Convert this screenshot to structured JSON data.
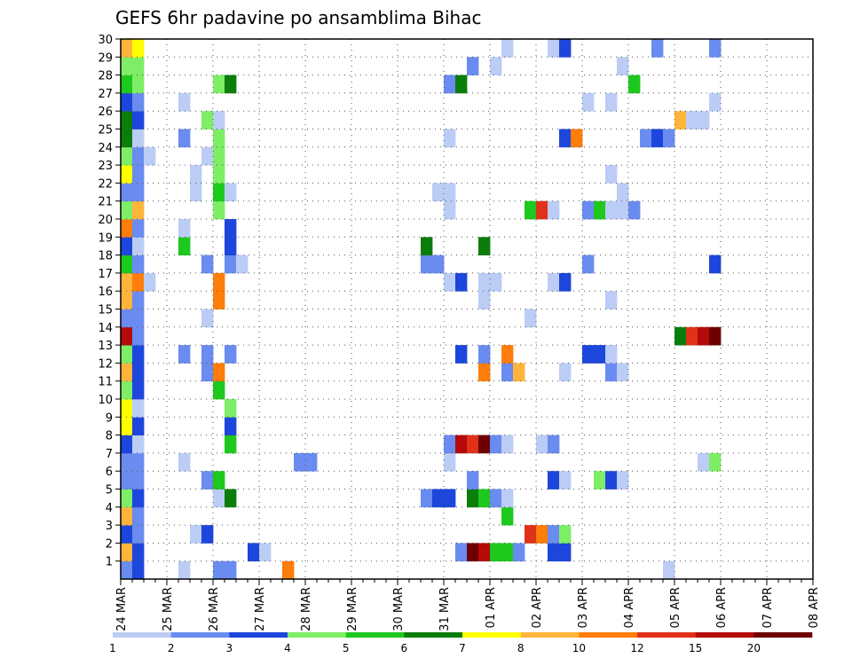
{
  "chart_data": {
    "type": "heatmap",
    "title": "GEFS 6hr padavine po ansamblima Bihac",
    "xlabel": "",
    "ylabel": "",
    "x_ticks": [
      "24 MAR",
      "25 MAR",
      "26 MAR",
      "27 MAR",
      "28 MAR",
      "29 MAR",
      "30 MAR",
      "31 MAR",
      "01 APR",
      "02 APR",
      "03 APR",
      "04 APR",
      "05 APR",
      "06 APR",
      "07 APR",
      "08 APR"
    ],
    "y_ticks": [
      "1",
      "2",
      "3",
      "4",
      "5",
      "6",
      "7",
      "8",
      "9",
      "10",
      "11",
      "12",
      "13",
      "14",
      "15",
      "16",
      "17",
      "18",
      "19",
      "20",
      "21",
      "22",
      "23",
      "24",
      "25",
      "26",
      "27",
      "28",
      "29",
      "30"
    ],
    "x_range": [
      "24 MAR 00Z",
      "08 APR 00Z"
    ],
    "y_range": [
      0,
      30
    ],
    "time_step_hours": 6,
    "grid": "dotted",
    "legend": "bottom",
    "colorbar": {
      "labels": [
        "1",
        "2",
        "3",
        "4",
        "5",
        "6",
        "7",
        "8",
        "10",
        "12",
        "15",
        "20"
      ],
      "colors": [
        "#bccdf5",
        "#6a8cf0",
        "#1c46dc",
        "#7dee65",
        "#1ec91e",
        "#0b7d0b",
        "#ffff00",
        "#ffb43c",
        "#ff7d0a",
        "#e13219",
        "#b40a0a",
        "#6e0000"
      ]
    },
    "cells": [
      [
        0,
        1,
        2
      ],
      [
        0,
        2,
        8
      ],
      [
        0,
        3,
        3
      ],
      [
        0,
        4,
        8
      ],
      [
        0,
        5,
        4
      ],
      [
        0,
        6,
        2
      ],
      [
        0,
        7,
        2
      ],
      [
        0,
        8,
        3
      ],
      [
        0,
        9,
        7
      ],
      [
        0,
        10,
        7
      ],
      [
        0,
        11,
        4
      ],
      [
        0,
        12,
        8
      ],
      [
        0,
        13,
        4
      ],
      [
        0,
        14,
        11
      ],
      [
        0,
        15,
        2
      ],
      [
        0,
        16,
        8
      ],
      [
        0,
        17,
        8
      ],
      [
        0,
        18,
        5
      ],
      [
        0,
        19,
        3
      ],
      [
        0,
        20,
        9
      ],
      [
        0,
        21,
        4
      ],
      [
        0,
        22,
        2
      ],
      [
        0,
        23,
        7
      ],
      [
        0,
        24,
        4
      ],
      [
        0,
        25,
        6
      ],
      [
        0,
        26,
        6
      ],
      [
        0,
        27,
        3
      ],
      [
        0,
        28,
        5
      ],
      [
        0,
        29,
        4
      ],
      [
        0,
        30,
        8
      ],
      [
        1,
        1,
        3
      ],
      [
        1,
        2,
        3
      ],
      [
        1,
        3,
        2
      ],
      [
        1,
        4,
        2
      ],
      [
        1,
        5,
        3
      ],
      [
        1,
        6,
        2
      ],
      [
        1,
        7,
        2
      ],
      [
        1,
        8,
        1
      ],
      [
        1,
        9,
        3
      ],
      [
        1,
        10,
        1
      ],
      [
        1,
        11,
        3
      ],
      [
        1,
        12,
        3
      ],
      [
        1,
        13,
        3
      ],
      [
        1,
        14,
        2
      ],
      [
        1,
        15,
        2
      ],
      [
        1,
        16,
        2
      ],
      [
        1,
        17,
        9
      ],
      [
        1,
        18,
        2
      ],
      [
        1,
        19,
        1
      ],
      [
        1,
        20,
        2
      ],
      [
        1,
        21,
        8
      ],
      [
        1,
        22,
        2
      ],
      [
        1,
        23,
        2
      ],
      [
        1,
        24,
        2
      ],
      [
        1,
        25,
        1
      ],
      [
        1,
        26,
        3
      ],
      [
        1,
        27,
        2
      ],
      [
        1,
        28,
        4
      ],
      [
        1,
        29,
        4
      ],
      [
        1,
        30,
        7
      ],
      [
        2,
        17,
        1
      ],
      [
        2,
        24,
        1
      ],
      [
        5,
        1,
        1
      ],
      [
        5,
        7,
        1
      ],
      [
        5,
        13,
        2
      ],
      [
        5,
        19,
        5
      ],
      [
        5,
        20,
        1
      ],
      [
        5,
        25,
        2
      ],
      [
        5,
        27,
        1
      ],
      [
        6,
        3,
        1
      ],
      [
        6,
        22,
        1
      ],
      [
        6,
        23,
        1
      ],
      [
        7,
        3,
        3
      ],
      [
        7,
        6,
        2
      ],
      [
        7,
        12,
        2
      ],
      [
        7,
        13,
        2
      ],
      [
        7,
        15,
        1
      ],
      [
        7,
        18,
        2
      ],
      [
        7,
        24,
        1
      ],
      [
        7,
        26,
        4
      ],
      [
        8,
        1,
        2
      ],
      [
        8,
        5,
        1
      ],
      [
        8,
        6,
        5
      ],
      [
        8,
        11,
        5
      ],
      [
        8,
        12,
        9
      ],
      [
        8,
        16,
        9
      ],
      [
        8,
        17,
        9
      ],
      [
        8,
        21,
        4
      ],
      [
        8,
        22,
        5
      ],
      [
        8,
        23,
        4
      ],
      [
        8,
        24,
        4
      ],
      [
        8,
        25,
        4
      ],
      [
        8,
        26,
        1
      ],
      [
        8,
        28,
        4
      ],
      [
        9,
        1,
        2
      ],
      [
        9,
        5,
        6
      ],
      [
        9,
        8,
        5
      ],
      [
        9,
        9,
        3
      ],
      [
        9,
        10,
        4
      ],
      [
        9,
        13,
        2
      ],
      [
        9,
        18,
        2
      ],
      [
        9,
        19,
        3
      ],
      [
        9,
        20,
        3
      ],
      [
        9,
        22,
        1
      ],
      [
        9,
        28,
        6
      ],
      [
        10,
        18,
        1
      ],
      [
        11,
        2,
        3
      ],
      [
        12,
        2,
        1
      ],
      [
        14,
        1,
        9
      ],
      [
        15,
        7,
        2
      ],
      [
        16,
        7,
        2
      ],
      [
        26,
        5,
        2
      ],
      [
        26,
        18,
        2
      ],
      [
        26,
        19,
        6
      ],
      [
        27,
        5,
        3
      ],
      [
        27,
        18,
        2
      ],
      [
        27,
        22,
        1
      ],
      [
        28,
        5,
        3
      ],
      [
        28,
        7,
        1
      ],
      [
        28,
        8,
        2
      ],
      [
        28,
        17,
        1
      ],
      [
        28,
        21,
        1
      ],
      [
        28,
        22,
        1
      ],
      [
        28,
        25,
        1
      ],
      [
        28,
        28,
        2
      ],
      [
        29,
        2,
        2
      ],
      [
        29,
        8,
        11
      ],
      [
        29,
        13,
        3
      ],
      [
        29,
        17,
        3
      ],
      [
        29,
        28,
        6
      ],
      [
        30,
        2,
        12
      ],
      [
        30,
        5,
        6
      ],
      [
        30,
        6,
        2
      ],
      [
        30,
        8,
        10
      ],
      [
        30,
        29,
        2
      ],
      [
        31,
        2,
        11
      ],
      [
        31,
        5,
        5
      ],
      [
        31,
        8,
        12
      ],
      [
        31,
        12,
        9
      ],
      [
        31,
        13,
        2
      ],
      [
        31,
        16,
        1
      ],
      [
        31,
        17,
        1
      ],
      [
        31,
        19,
        6
      ],
      [
        32,
        2,
        5
      ],
      [
        32,
        5,
        2
      ],
      [
        32,
        8,
        2
      ],
      [
        32,
        17,
        1
      ],
      [
        32,
        29,
        1
      ],
      [
        33,
        2,
        5
      ],
      [
        33,
        4,
        5
      ],
      [
        33,
        5,
        1
      ],
      [
        33,
        8,
        1
      ],
      [
        33,
        12,
        2
      ],
      [
        33,
        13,
        9
      ],
      [
        33,
        30,
        1
      ],
      [
        34,
        2,
        2
      ],
      [
        34,
        12,
        8
      ],
      [
        35,
        3,
        10
      ],
      [
        35,
        15,
        1
      ],
      [
        35,
        21,
        5
      ],
      [
        36,
        3,
        9
      ],
      [
        36,
        8,
        1
      ],
      [
        36,
        21,
        10
      ],
      [
        37,
        2,
        3
      ],
      [
        37,
        3,
        2
      ],
      [
        37,
        6,
        3
      ],
      [
        37,
        8,
        2
      ],
      [
        37,
        17,
        1
      ],
      [
        37,
        21,
        1
      ],
      [
        37,
        30,
        1
      ],
      [
        38,
        2,
        3
      ],
      [
        38,
        3,
        4
      ],
      [
        38,
        6,
        1
      ],
      [
        38,
        12,
        1
      ],
      [
        38,
        17,
        3
      ],
      [
        38,
        25,
        3
      ],
      [
        38,
        30,
        3
      ],
      [
        39,
        25,
        9
      ],
      [
        40,
        13,
        3
      ],
      [
        40,
        18,
        2
      ],
      [
        40,
        21,
        2
      ],
      [
        40,
        27,
        1
      ],
      [
        41,
        6,
        4
      ],
      [
        41,
        13,
        3
      ],
      [
        41,
        21,
        5
      ],
      [
        42,
        6,
        3
      ],
      [
        42,
        12,
        2
      ],
      [
        42,
        13,
        1
      ],
      [
        42,
        16,
        1
      ],
      [
        42,
        21,
        1
      ],
      [
        42,
        23,
        1
      ],
      [
        42,
        27,
        1
      ],
      [
        43,
        6,
        1
      ],
      [
        43,
        12,
        1
      ],
      [
        43,
        21,
        1
      ],
      [
        43,
        22,
        1
      ],
      [
        43,
        29,
        1
      ],
      [
        44,
        21,
        2
      ],
      [
        44,
        28,
        5
      ],
      [
        45,
        25,
        2
      ],
      [
        46,
        25,
        3
      ],
      [
        46,
        30,
        2
      ],
      [
        47,
        1,
        1
      ],
      [
        47,
        25,
        2
      ],
      [
        48,
        14,
        6
      ],
      [
        48,
        26,
        8
      ],
      [
        49,
        14,
        10
      ],
      [
        49,
        26,
        1
      ],
      [
        50,
        7,
        1
      ],
      [
        50,
        14,
        11
      ],
      [
        50,
        26,
        1
      ],
      [
        51,
        7,
        4
      ],
      [
        51,
        14,
        12
      ],
      [
        51,
        18,
        3
      ],
      [
        51,
        27,
        1
      ],
      [
        51,
        30,
        2
      ]
    ]
  }
}
